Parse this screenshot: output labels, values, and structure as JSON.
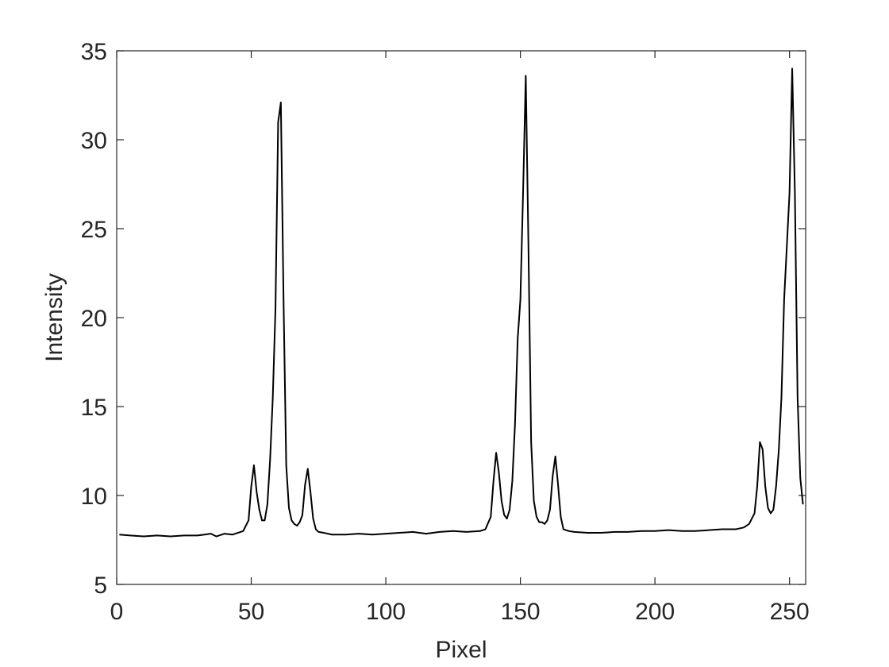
{
  "chart_data": {
    "type": "line",
    "xlabel": "Pixel",
    "ylabel": "Intensity",
    "x": [
      1,
      5,
      10,
      15,
      20,
      25,
      30,
      35,
      37,
      40,
      43,
      45,
      47,
      49,
      50,
      51,
      52,
      53,
      54,
      55,
      56,
      57,
      58,
      59,
      60,
      61,
      62,
      63,
      64,
      65,
      66,
      67,
      68,
      69,
      70,
      71,
      72,
      73,
      74,
      75,
      77,
      80,
      85,
      90,
      95,
      100,
      105,
      110,
      115,
      120,
      125,
      130,
      135,
      137,
      139,
      140,
      141,
      142,
      143,
      144,
      145,
      146,
      147,
      148,
      149,
      150,
      151,
      152,
      153,
      154,
      155,
      156,
      157,
      158,
      159,
      160,
      161,
      162,
      163,
      164,
      165,
      166,
      168,
      170,
      175,
      180,
      185,
      190,
      195,
      200,
      205,
      210,
      215,
      220,
      225,
      230,
      233,
      235,
      237,
      238,
      239,
      240,
      241,
      242,
      243,
      244,
      245,
      246,
      247,
      248,
      249,
      250,
      251,
      252,
      253,
      254,
      255
    ],
    "series": [
      {
        "color": "#000000",
        "values": [
          7.8,
          7.75,
          7.7,
          7.75,
          7.7,
          7.75,
          7.75,
          7.85,
          7.7,
          7.85,
          7.8,
          7.9,
          8.0,
          8.6,
          10.5,
          11.7,
          10.2,
          9.2,
          8.6,
          8.6,
          9.5,
          12,
          15.5,
          20.5,
          31,
          32.1,
          21,
          11.7,
          9.3,
          8.6,
          8.4,
          8.3,
          8.5,
          8.9,
          10.6,
          11.5,
          10.2,
          8.7,
          8.1,
          7.95,
          7.9,
          7.8,
          7.8,
          7.85,
          7.8,
          7.85,
          7.9,
          7.95,
          7.85,
          7.95,
          8.0,
          7.95,
          8.0,
          8.1,
          8.8,
          10.8,
          12.4,
          11.3,
          9.7,
          8.9,
          8.7,
          9.2,
          10.8,
          14,
          18.8,
          21,
          27,
          33.6,
          24,
          13,
          9.7,
          8.8,
          8.5,
          8.5,
          8.4,
          8.6,
          9.2,
          11.1,
          12.2,
          10.6,
          8.8,
          8.1,
          8.0,
          7.95,
          7.9,
          7.9,
          7.95,
          7.95,
          8.0,
          8.0,
          8.05,
          8.0,
          8.0,
          8.05,
          8.1,
          8.1,
          8.2,
          8.4,
          9.0,
          10.5,
          13,
          12.6,
          10.5,
          9.3,
          9.0,
          9.2,
          10.5,
          12.5,
          15.5,
          21,
          24,
          27,
          34,
          27,
          15.5,
          11,
          9.5
        ]
      }
    ],
    "xlim": [
      0,
      256
    ],
    "xticks": [
      0,
      50,
      100,
      150,
      200,
      250
    ],
    "ylim": [
      5,
      35
    ],
    "yticks": [
      5,
      10,
      15,
      20,
      25,
      30,
      35
    ]
  }
}
